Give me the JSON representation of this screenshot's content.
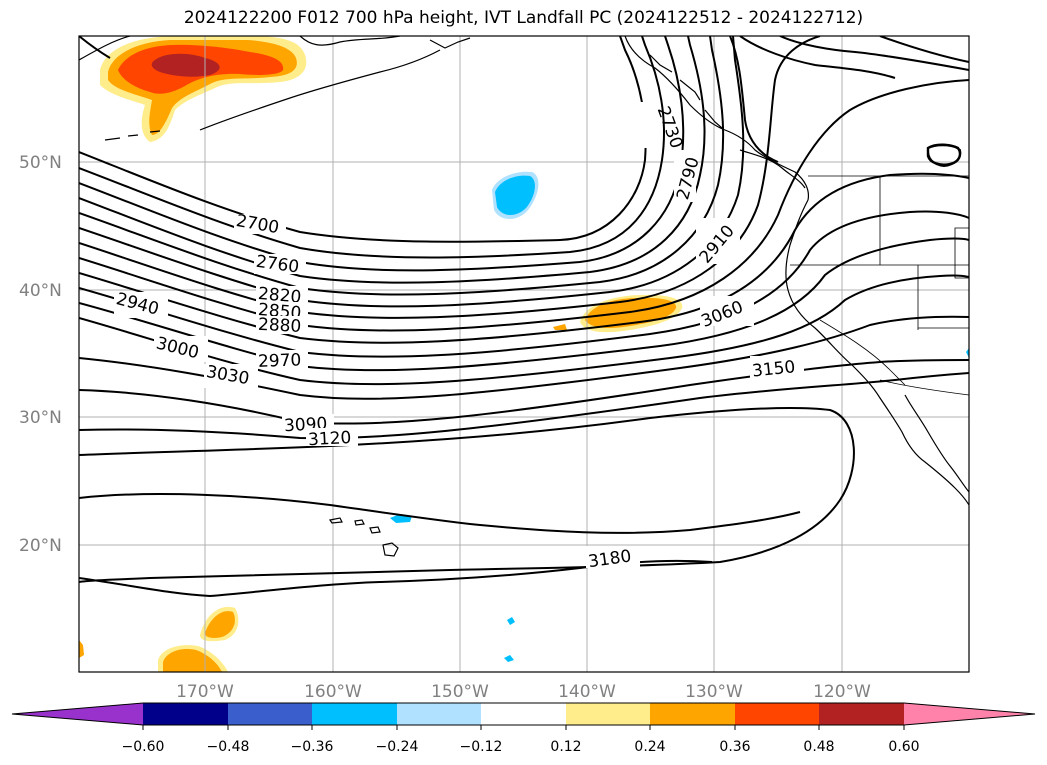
{
  "title": "2024122200 F012 700 hPa height, IVT Landfall PC (2024122512 - 2024122712)",
  "lat_labels": [
    "50°N",
    "40°N",
    "30°N",
    "20°N"
  ],
  "lon_labels": [
    "170°W",
    "160°W",
    "150°W",
    "140°W",
    "130°W",
    "120°W"
  ],
  "contour_labels": [
    "2700",
    "2730",
    "2760",
    "2790",
    "2820",
    "2850",
    "2880",
    "2910",
    "2940",
    "2970",
    "3000",
    "3030",
    "3060",
    "3090",
    "3120",
    "3150",
    "3180"
  ],
  "colorbar": {
    "ticks": [
      "−0.60",
      "−0.48",
      "−0.36",
      "−0.24",
      "−0.12",
      "0.12",
      "0.24",
      "0.36",
      "0.48",
      "0.60"
    ],
    "colors": [
      "#9932cc",
      "#00008b",
      "#3a5fcd",
      "#00bfff",
      "#b0e2ff",
      "#ffffff",
      "#ffec8b",
      "#ffa500",
      "#ff4500",
      "#b22222",
      "#ff82ab"
    ]
  }
}
